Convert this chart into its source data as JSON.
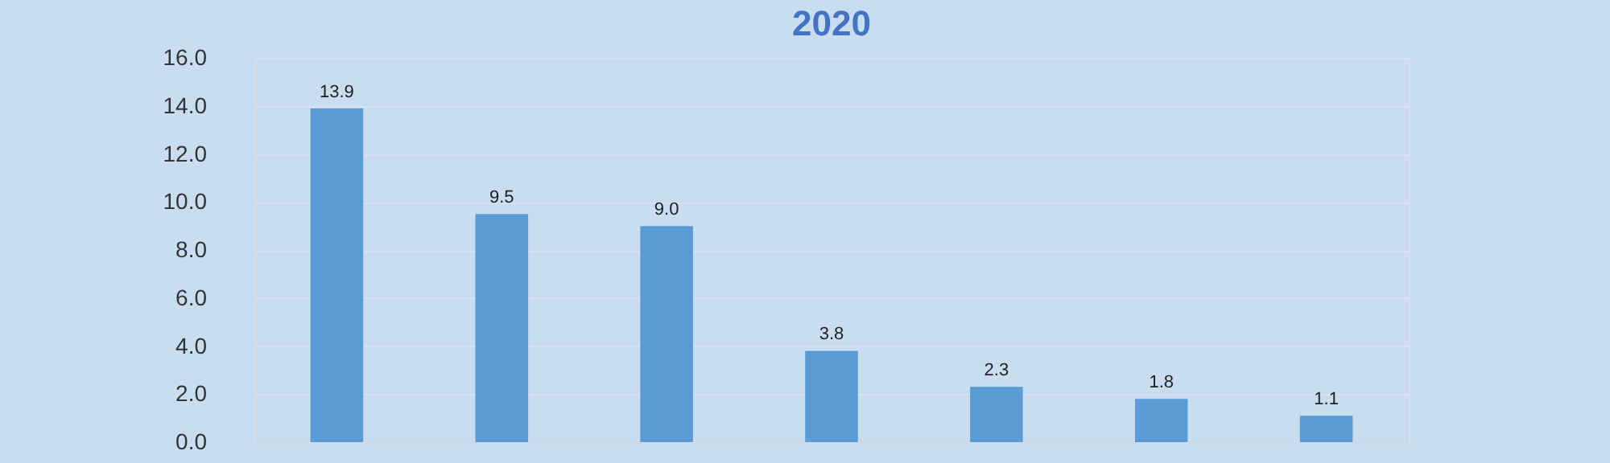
{
  "chart_data": {
    "type": "bar",
    "title": "2020",
    "categories": [
      null,
      null,
      null,
      null,
      null,
      null,
      null
    ],
    "values": [
      13.9,
      9.5,
      9.0,
      3.8,
      2.3,
      1.8,
      1.1
    ],
    "color": "#5b9bd5",
    "ylim": [
      0,
      16
    ],
    "yticks": [
      {
        "value": 0,
        "label": "0.0"
      },
      {
        "value": 2,
        "label": "2.0"
      },
      {
        "value": 4,
        "label": "4.0"
      },
      {
        "value": 6,
        "label": "6.0"
      },
      {
        "value": 8,
        "label": "8.0"
      },
      {
        "value": 10,
        "label": "10.0"
      },
      {
        "value": 12,
        "label": "12.0"
      },
      {
        "value": 14,
        "label": "14.0"
      },
      {
        "value": 16,
        "label": "16.0"
      }
    ],
    "value_labels": [
      "13.9",
      "9.5",
      "9.0",
      "3.8",
      "2.3",
      "1.8",
      "1.1"
    ],
    "grid": "y",
    "tick_labels": "y"
  }
}
